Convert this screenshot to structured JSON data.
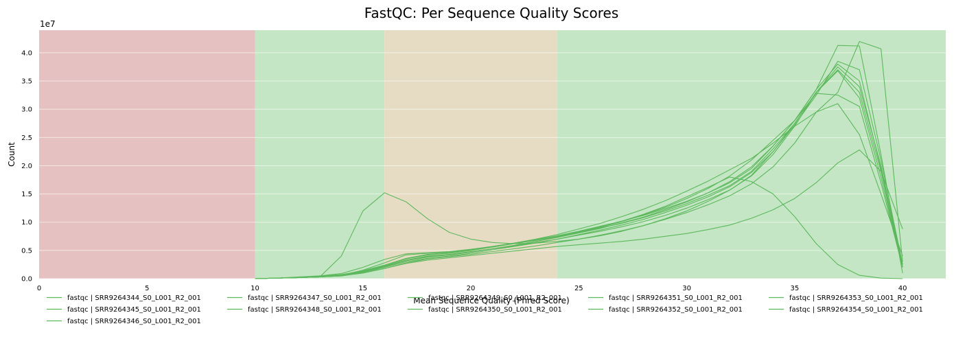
{
  "chart_data": {
    "type": "line",
    "title": "FastQC: Per Sequence Quality Scores",
    "xlabel": "Mean Sequence Quality (Phred Score)",
    "ylabel": "Count",
    "y_multiplier": "1e7",
    "xlim": [
      0,
      42
    ],
    "ylim": [
      0,
      4.4
    ],
    "x_ticks": [
      0,
      5,
      10,
      15,
      20,
      25,
      30,
      35,
      40
    ],
    "y_ticks": [
      0.0,
      0.5,
      1.0,
      1.5,
      2.0,
      2.5,
      3.0,
      3.5,
      4.0
    ],
    "grid": "horizontal",
    "legend_position": "bottom",
    "line_color": "#5cb85c",
    "bands": [
      {
        "from": 0,
        "to": 10,
        "color": "#e6c1c1"
      },
      {
        "from": 10,
        "to": 16,
        "color": "#c4e6c4"
      },
      {
        "from": 16,
        "to": 24,
        "color": "#e6dcc4"
      },
      {
        "from": 24,
        "to": 42,
        "color": "#c4e6c4"
      }
    ],
    "x": [
      10,
      11,
      12,
      13,
      14,
      15,
      16,
      17,
      18,
      19,
      20,
      21,
      22,
      23,
      24,
      25,
      26,
      27,
      28,
      29,
      30,
      31,
      32,
      33,
      34,
      35,
      36,
      37,
      38,
      39,
      40
    ],
    "series": [
      {
        "name": "fastqc | SRR9264344_S0_L001_R2_001",
        "values": [
          0,
          0.01,
          0.02,
          0.04,
          0.07,
          0.13,
          0.23,
          0.35,
          0.42,
          0.45,
          0.5,
          0.56,
          0.62,
          0.68,
          0.74,
          0.82,
          0.9,
          0.98,
          1.08,
          1.2,
          1.33,
          1.48,
          1.65,
          1.9,
          2.3,
          2.75,
          3.3,
          3.7,
          3.3,
          1.9,
          0.2
        ]
      },
      {
        "name": "fastqc | SRR9264345_S0_L001_R2_001",
        "values": [
          0,
          0.01,
          0.02,
          0.03,
          0.06,
          0.12,
          0.22,
          0.33,
          0.4,
          0.43,
          0.48,
          0.53,
          0.58,
          0.64,
          0.7,
          0.78,
          0.86,
          0.95,
          1.05,
          1.17,
          1.3,
          1.45,
          1.63,
          1.88,
          2.25,
          2.72,
          3.25,
          3.85,
          3.7,
          2.1,
          0.25
        ]
      },
      {
        "name": "fastqc | SRR9264346_S0_L001_R2_001",
        "values": [
          0,
          0.01,
          0.02,
          0.03,
          0.05,
          0.11,
          0.2,
          0.3,
          0.36,
          0.4,
          0.45,
          0.51,
          0.57,
          0.63,
          0.7,
          0.77,
          0.84,
          0.92,
          1.01,
          1.12,
          1.25,
          1.4,
          1.57,
          1.82,
          2.2,
          2.7,
          3.3,
          3.75,
          3.4,
          2.0,
          0.2
        ]
      },
      {
        "name": "fastqc | SRR9264347_S0_L001_R2_001",
        "values": [
          0,
          0.01,
          0.02,
          0.04,
          0.07,
          0.14,
          0.24,
          0.36,
          0.43,
          0.46,
          0.51,
          0.57,
          0.63,
          0.69,
          0.76,
          0.84,
          0.93,
          1.02,
          1.12,
          1.24,
          1.37,
          1.52,
          1.7,
          1.95,
          2.35,
          2.8,
          3.35,
          3.8,
          3.5,
          1.95,
          0.25
        ]
      },
      {
        "name": "fastqc | SRR9264348_S0_L001_R2_001",
        "values": [
          0,
          0.01,
          0.02,
          0.03,
          0.06,
          0.12,
          0.21,
          0.32,
          0.39,
          0.42,
          0.47,
          0.53,
          0.59,
          0.66,
          0.73,
          0.81,
          0.89,
          0.99,
          1.09,
          1.22,
          1.36,
          1.52,
          1.72,
          1.98,
          2.35,
          2.8,
          3.35,
          4.13,
          4.12,
          2.2,
          0.1
        ]
      },
      {
        "name": "fastqc | SRR9264349_S0_L001_R2_001",
        "values": [
          0,
          0.01,
          0.02,
          0.03,
          0.4,
          1.2,
          1.52,
          1.36,
          1.06,
          0.82,
          0.7,
          0.64,
          0.62,
          0.63,
          0.66,
          0.7,
          0.76,
          0.84,
          0.94,
          1.06,
          1.2,
          1.37,
          1.57,
          1.83,
          2.25,
          2.75,
          3.3,
          3.68,
          3.2,
          1.8,
          0.2
        ]
      },
      {
        "name": "fastqc | SRR9264350_S0_L001_R2_001",
        "values": [
          0,
          0.01,
          0.03,
          0.05,
          0.09,
          0.2,
          0.34,
          0.44,
          0.46,
          0.48,
          0.52,
          0.57,
          0.63,
          0.7,
          0.78,
          0.88,
          0.98,
          1.1,
          1.23,
          1.38,
          1.55,
          1.73,
          1.93,
          2.13,
          2.4,
          2.7,
          2.95,
          3.1,
          2.55,
          1.5,
          0.4
        ]
      },
      {
        "name": "fastqc | SRR9264351_S0_L001_R2_001",
        "values": [
          0,
          0.01,
          0.02,
          0.04,
          0.07,
          0.13,
          0.22,
          0.32,
          0.38,
          0.42,
          0.47,
          0.53,
          0.59,
          0.66,
          0.73,
          0.82,
          0.91,
          1.01,
          1.13,
          1.26,
          1.42,
          1.6,
          1.82,
          2.1,
          2.45,
          2.8,
          3.28,
          3.25,
          3.05,
          1.7,
          0.2
        ]
      },
      {
        "name": "fastqc | SRR9264352_S0_L001_R2_001",
        "values": [
          0,
          0.01,
          0.02,
          0.03,
          0.06,
          0.15,
          0.28,
          0.42,
          0.45,
          0.47,
          0.51,
          0.56,
          0.62,
          0.68,
          0.75,
          0.83,
          0.92,
          1.02,
          1.14,
          1.28,
          1.45,
          1.62,
          1.8,
          1.72,
          1.5,
          1.1,
          0.62,
          0.25,
          0.06,
          0.01,
          0
        ]
      },
      {
        "name": "fastqc | SRR9264353_S0_L001_R2_001",
        "values": [
          0,
          0.01,
          0.02,
          0.03,
          0.05,
          0.1,
          0.18,
          0.27,
          0.33,
          0.37,
          0.41,
          0.45,
          0.49,
          0.53,
          0.57,
          0.6,
          0.63,
          0.66,
          0.7,
          0.75,
          0.8,
          0.87,
          0.95,
          1.07,
          1.22,
          1.42,
          1.7,
          2.05,
          2.28,
          1.9,
          0.88
        ]
      },
      {
        "name": "fastqc | SRR9264354_S0_L001_R2_001",
        "values": [
          0,
          0.01,
          0.02,
          0.03,
          0.05,
          0.1,
          0.18,
          0.28,
          0.35,
          0.39,
          0.43,
          0.48,
          0.53,
          0.58,
          0.64,
          0.7,
          0.77,
          0.85,
          0.94,
          1.05,
          1.17,
          1.31,
          1.47,
          1.68,
          1.98,
          2.4,
          2.95,
          3.3,
          4.2,
          4.07,
          0.3
        ]
      }
    ]
  }
}
